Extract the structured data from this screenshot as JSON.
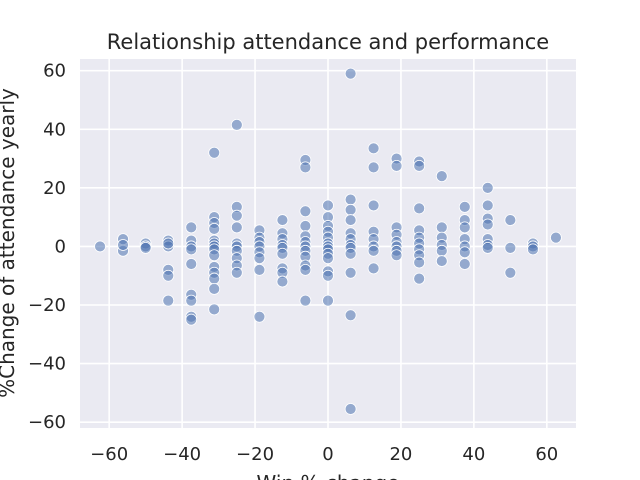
{
  "chart_data": {
    "type": "scatter",
    "title": "Relationship attendance and performance",
    "xlabel": "Win % change",
    "ylabel": "%Change of attendance yearly",
    "xlim": [
      -68,
      68
    ],
    "ylim": [
      -62,
      64
    ],
    "xticks": [
      -60,
      -40,
      -20,
      0,
      20,
      40,
      60
    ],
    "yticks": [
      -60,
      -40,
      -20,
      0,
      20,
      40,
      60
    ],
    "xtick_labels": [
      "−60",
      "−40",
      "−20",
      "0",
      "20",
      "40",
      "60"
    ],
    "ytick_labels": [
      "−60",
      "−40",
      "−20",
      "0",
      "20",
      "40",
      "60"
    ],
    "grid": true,
    "background_color": "#eaeaf2",
    "point_color": "#4c72b0",
    "points": [
      [
        -62.5,
        0
      ],
      [
        -56.2,
        2.5
      ],
      [
        -56.2,
        -1.5
      ],
      [
        -56.2,
        0.5
      ],
      [
        -50,
        1
      ],
      [
        -50,
        0
      ],
      [
        -50,
        -0.5
      ],
      [
        -43.8,
        2
      ],
      [
        -43.8,
        0
      ],
      [
        -43.8,
        -8
      ],
      [
        -43.8,
        -10
      ],
      [
        -43.8,
        -18.5
      ],
      [
        -43.8,
        1
      ],
      [
        -37.5,
        6.5
      ],
      [
        -37.5,
        2
      ],
      [
        -37.5,
        0
      ],
      [
        -37.5,
        -1
      ],
      [
        -37.5,
        -6
      ],
      [
        -37.5,
        -16.5
      ],
      [
        -37.5,
        -18.5
      ],
      [
        -37.5,
        -24
      ],
      [
        -37.5,
        -25
      ],
      [
        -31.2,
        32
      ],
      [
        -31.2,
        10
      ],
      [
        -31.2,
        8
      ],
      [
        -31.2,
        6
      ],
      [
        -31.2,
        2
      ],
      [
        -31.2,
        1
      ],
      [
        -31.2,
        0
      ],
      [
        -31.2,
        -1
      ],
      [
        -31.2,
        -3
      ],
      [
        -31.2,
        -7
      ],
      [
        -31.2,
        -9
      ],
      [
        -31.2,
        -11
      ],
      [
        -31.2,
        -14.5
      ],
      [
        -31.2,
        -21.5
      ],
      [
        -25,
        41.5
      ],
      [
        -25,
        13.5
      ],
      [
        -25,
        10.5
      ],
      [
        -25,
        6.5
      ],
      [
        -25,
        1
      ],
      [
        -25,
        0
      ],
      [
        -25,
        -1.5
      ],
      [
        -25,
        -4
      ],
      [
        -25,
        -6.5
      ],
      [
        -25,
        -9
      ],
      [
        -18.8,
        5.5
      ],
      [
        -18.8,
        3
      ],
      [
        -18.8,
        1.5
      ],
      [
        -18.8,
        0
      ],
      [
        -18.8,
        -2
      ],
      [
        -18.8,
        -4
      ],
      [
        -18.8,
        -8
      ],
      [
        -18.8,
        -24
      ],
      [
        -12.5,
        9
      ],
      [
        -12.5,
        4.5
      ],
      [
        -12.5,
        2.5
      ],
      [
        -12.5,
        0.5
      ],
      [
        -12.5,
        -0.5
      ],
      [
        -12.5,
        -2.5
      ],
      [
        -12.5,
        -7.5
      ],
      [
        -12.5,
        -9
      ],
      [
        -12.5,
        -12
      ],
      [
        -6.2,
        29.5
      ],
      [
        -6.2,
        27
      ],
      [
        -6.2,
        12
      ],
      [
        -6.2,
        7
      ],
      [
        -6.2,
        3.5
      ],
      [
        -6.2,
        1.5
      ],
      [
        -6.2,
        0
      ],
      [
        -6.2,
        -1.5
      ],
      [
        -6.2,
        -3.5
      ],
      [
        -6.2,
        -6.5
      ],
      [
        -6.2,
        -8
      ],
      [
        -6.2,
        -18.5
      ],
      [
        0,
        14
      ],
      [
        0,
        10
      ],
      [
        0,
        7
      ],
      [
        0,
        5
      ],
      [
        0,
        3
      ],
      [
        0,
        1
      ],
      [
        0,
        0
      ],
      [
        0,
        -1
      ],
      [
        0,
        -2.5
      ],
      [
        0,
        -4
      ],
      [
        0,
        -8.5
      ],
      [
        0,
        -10
      ],
      [
        0,
        -18.5
      ],
      [
        6.2,
        59
      ],
      [
        6.2,
        16
      ],
      [
        6.2,
        12.5
      ],
      [
        6.2,
        9
      ],
      [
        6.2,
        4.5
      ],
      [
        6.2,
        2.5
      ],
      [
        6.2,
        0.5
      ],
      [
        6.2,
        -0.5
      ],
      [
        6.2,
        -2.5
      ],
      [
        6.2,
        -9
      ],
      [
        6.2,
        -23.5
      ],
      [
        6.2,
        -55.5
      ],
      [
        12.5,
        33.5
      ],
      [
        12.5,
        27
      ],
      [
        12.5,
        14
      ],
      [
        12.5,
        5
      ],
      [
        12.5,
        2.5
      ],
      [
        12.5,
        0
      ],
      [
        12.5,
        -1.5
      ],
      [
        12.5,
        -7.5
      ],
      [
        18.8,
        30
      ],
      [
        18.8,
        27.5
      ],
      [
        18.8,
        6.5
      ],
      [
        18.8,
        4
      ],
      [
        18.8,
        1.5
      ],
      [
        18.8,
        0
      ],
      [
        18.8,
        -1.5
      ],
      [
        18.8,
        -3
      ],
      [
        25,
        29
      ],
      [
        25,
        27.5
      ],
      [
        25,
        13
      ],
      [
        25,
        5.5
      ],
      [
        25,
        3
      ],
      [
        25,
        1
      ],
      [
        25,
        -1
      ],
      [
        25,
        -3
      ],
      [
        25,
        -5.5
      ],
      [
        25,
        -11
      ],
      [
        31.2,
        24
      ],
      [
        31.2,
        6.5
      ],
      [
        31.2,
        3
      ],
      [
        31.2,
        0.5
      ],
      [
        31.2,
        -1.5
      ],
      [
        31.2,
        -5
      ],
      [
        37.5,
        13.5
      ],
      [
        37.5,
        9
      ],
      [
        37.5,
        6.5
      ],
      [
        37.5,
        2.5
      ],
      [
        37.5,
        0
      ],
      [
        37.5,
        -2
      ],
      [
        37.5,
        -6
      ],
      [
        43.8,
        20
      ],
      [
        43.8,
        14
      ],
      [
        43.8,
        9.5
      ],
      [
        43.8,
        7.5
      ],
      [
        43.8,
        2.5
      ],
      [
        43.8,
        0.5
      ],
      [
        43.8,
        -0.5
      ],
      [
        50,
        9
      ],
      [
        50,
        -0.5
      ],
      [
        50,
        -9
      ],
      [
        56.2,
        1
      ],
      [
        56.2,
        0
      ],
      [
        56.2,
        -1
      ],
      [
        62.5,
        3
      ]
    ]
  }
}
